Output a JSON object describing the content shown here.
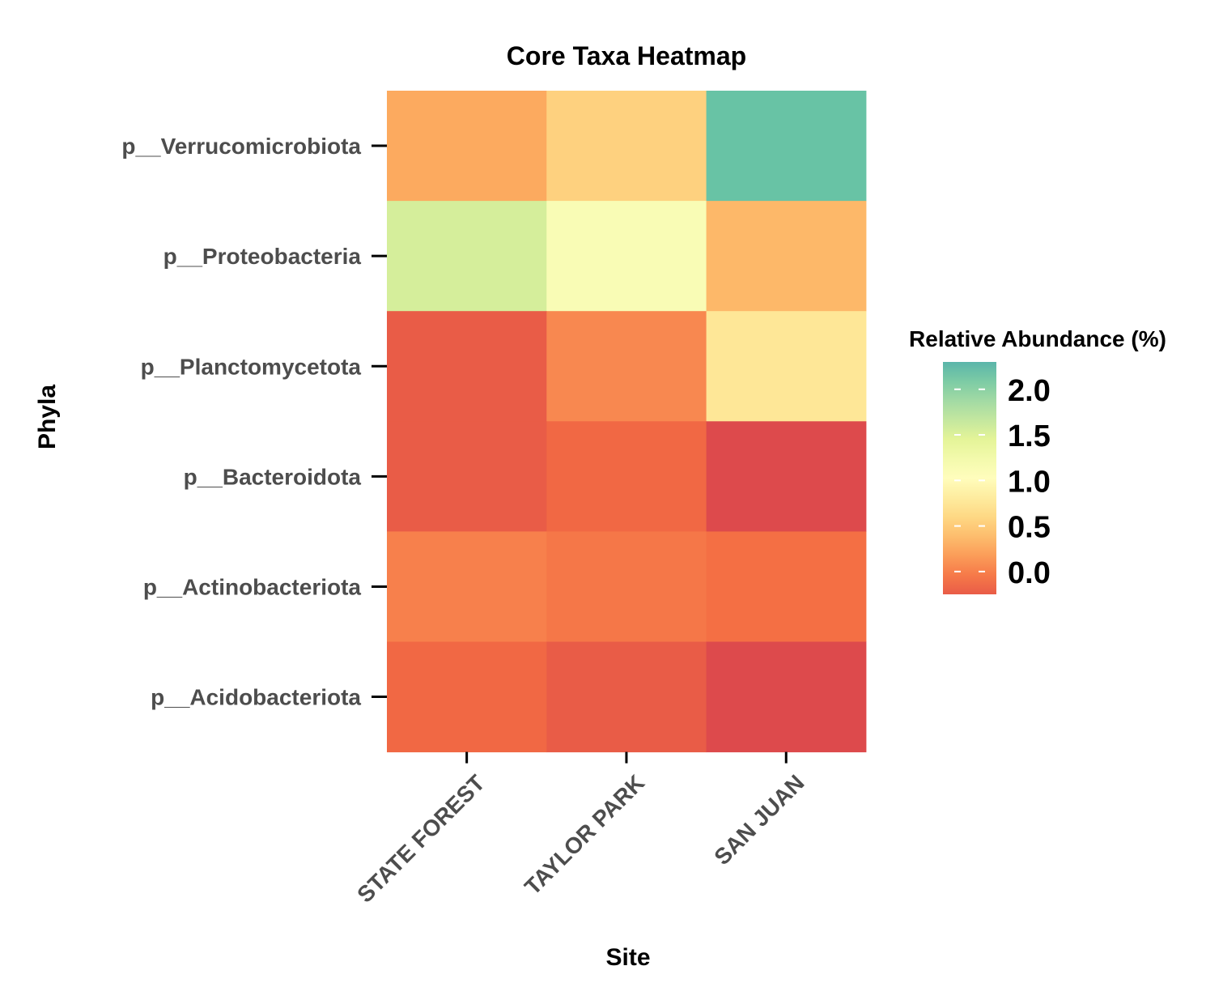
{
  "chart_data": {
    "type": "heatmap",
    "title": "Core Taxa Heatmap",
    "xlabel": "Site",
    "ylabel": "Phyla",
    "x_categories": [
      "STATE FOREST",
      "TAYLOR PARK",
      "SAN JUAN"
    ],
    "y_categories": [
      "p__Verrucomicrobiota",
      "p__Proteobacteria",
      "p__Planctomycetota",
      "p__Bacteroidota",
      "p__Actinobacteriota",
      "p__Acidobacteriota"
    ],
    "values": [
      [
        0.25,
        0.55,
        2.2
      ],
      [
        1.55,
        1.15,
        0.35
      ],
      [
        -0.25,
        0.05,
        0.75
      ],
      [
        -0.25,
        -0.15,
        -0.4
      ],
      [
        0.0,
        -0.05,
        -0.1
      ],
      [
        -0.15,
        -0.25,
        -0.4
      ]
    ],
    "legend": {
      "title": "Relative Abundance (%)",
      "ticks": [
        "2.0",
        "1.5",
        "1.0",
        "0.5",
        "0.0"
      ],
      "tick_values": [
        2.0,
        1.5,
        1.0,
        0.5,
        0.0
      ],
      "range": [
        -0.25,
        2.3
      ],
      "position": "right"
    },
    "palette": [
      "#d53e4f",
      "#f46d43",
      "#fdae61",
      "#fee08b",
      "#ffffbf",
      "#e6f598",
      "#abdda4",
      "#66c2a5",
      "#3288bd"
    ],
    "palette_range": [
      -0.5,
      2.6
    ],
    "tick_color": "#000000",
    "tick_label_color": "#4d4d4d"
  }
}
